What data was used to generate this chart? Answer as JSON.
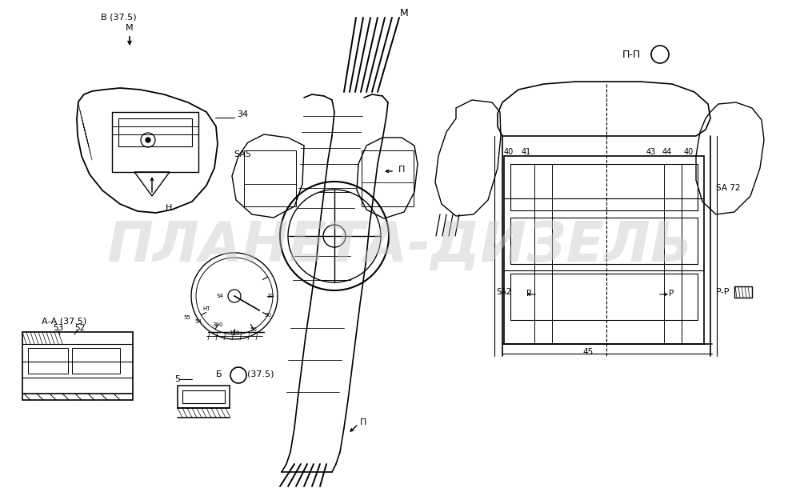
{
  "background_color": "#ffffff",
  "watermark_text": "ПЛАНЕТА-ДИЗЕЛЬ",
  "watermark_color": "#c8c8c8",
  "watermark_alpha": 0.45,
  "figsize": [
    10.0,
    6.1
  ],
  "dpi": 100,
  "labels": {
    "B_view": "В (37.5)",
    "M_top_center": "М",
    "M_arrow": "М",
    "PP_top_right": "П-П",
    "label_34": "34",
    "SA5": "SA5",
    "H": "Н",
    "label_40L": "40",
    "label_41": "41",
    "label_43": "43",
    "label_44": "44",
    "label_40R": "40",
    "SA72": "SA 72",
    "SA2": "SA2",
    "P_left": "Р",
    "P_right": "Р",
    "label_45": "45",
    "PP_right": "Р-Р",
    "AA_view": "А-А (37.5)",
    "label_53": "53",
    "label_52": "52",
    "label_5": "5",
    "B_circle": "Б",
    "B_circle2": "(37.5)",
    "P_mid": "П",
    "P_bottom": "П"
  }
}
